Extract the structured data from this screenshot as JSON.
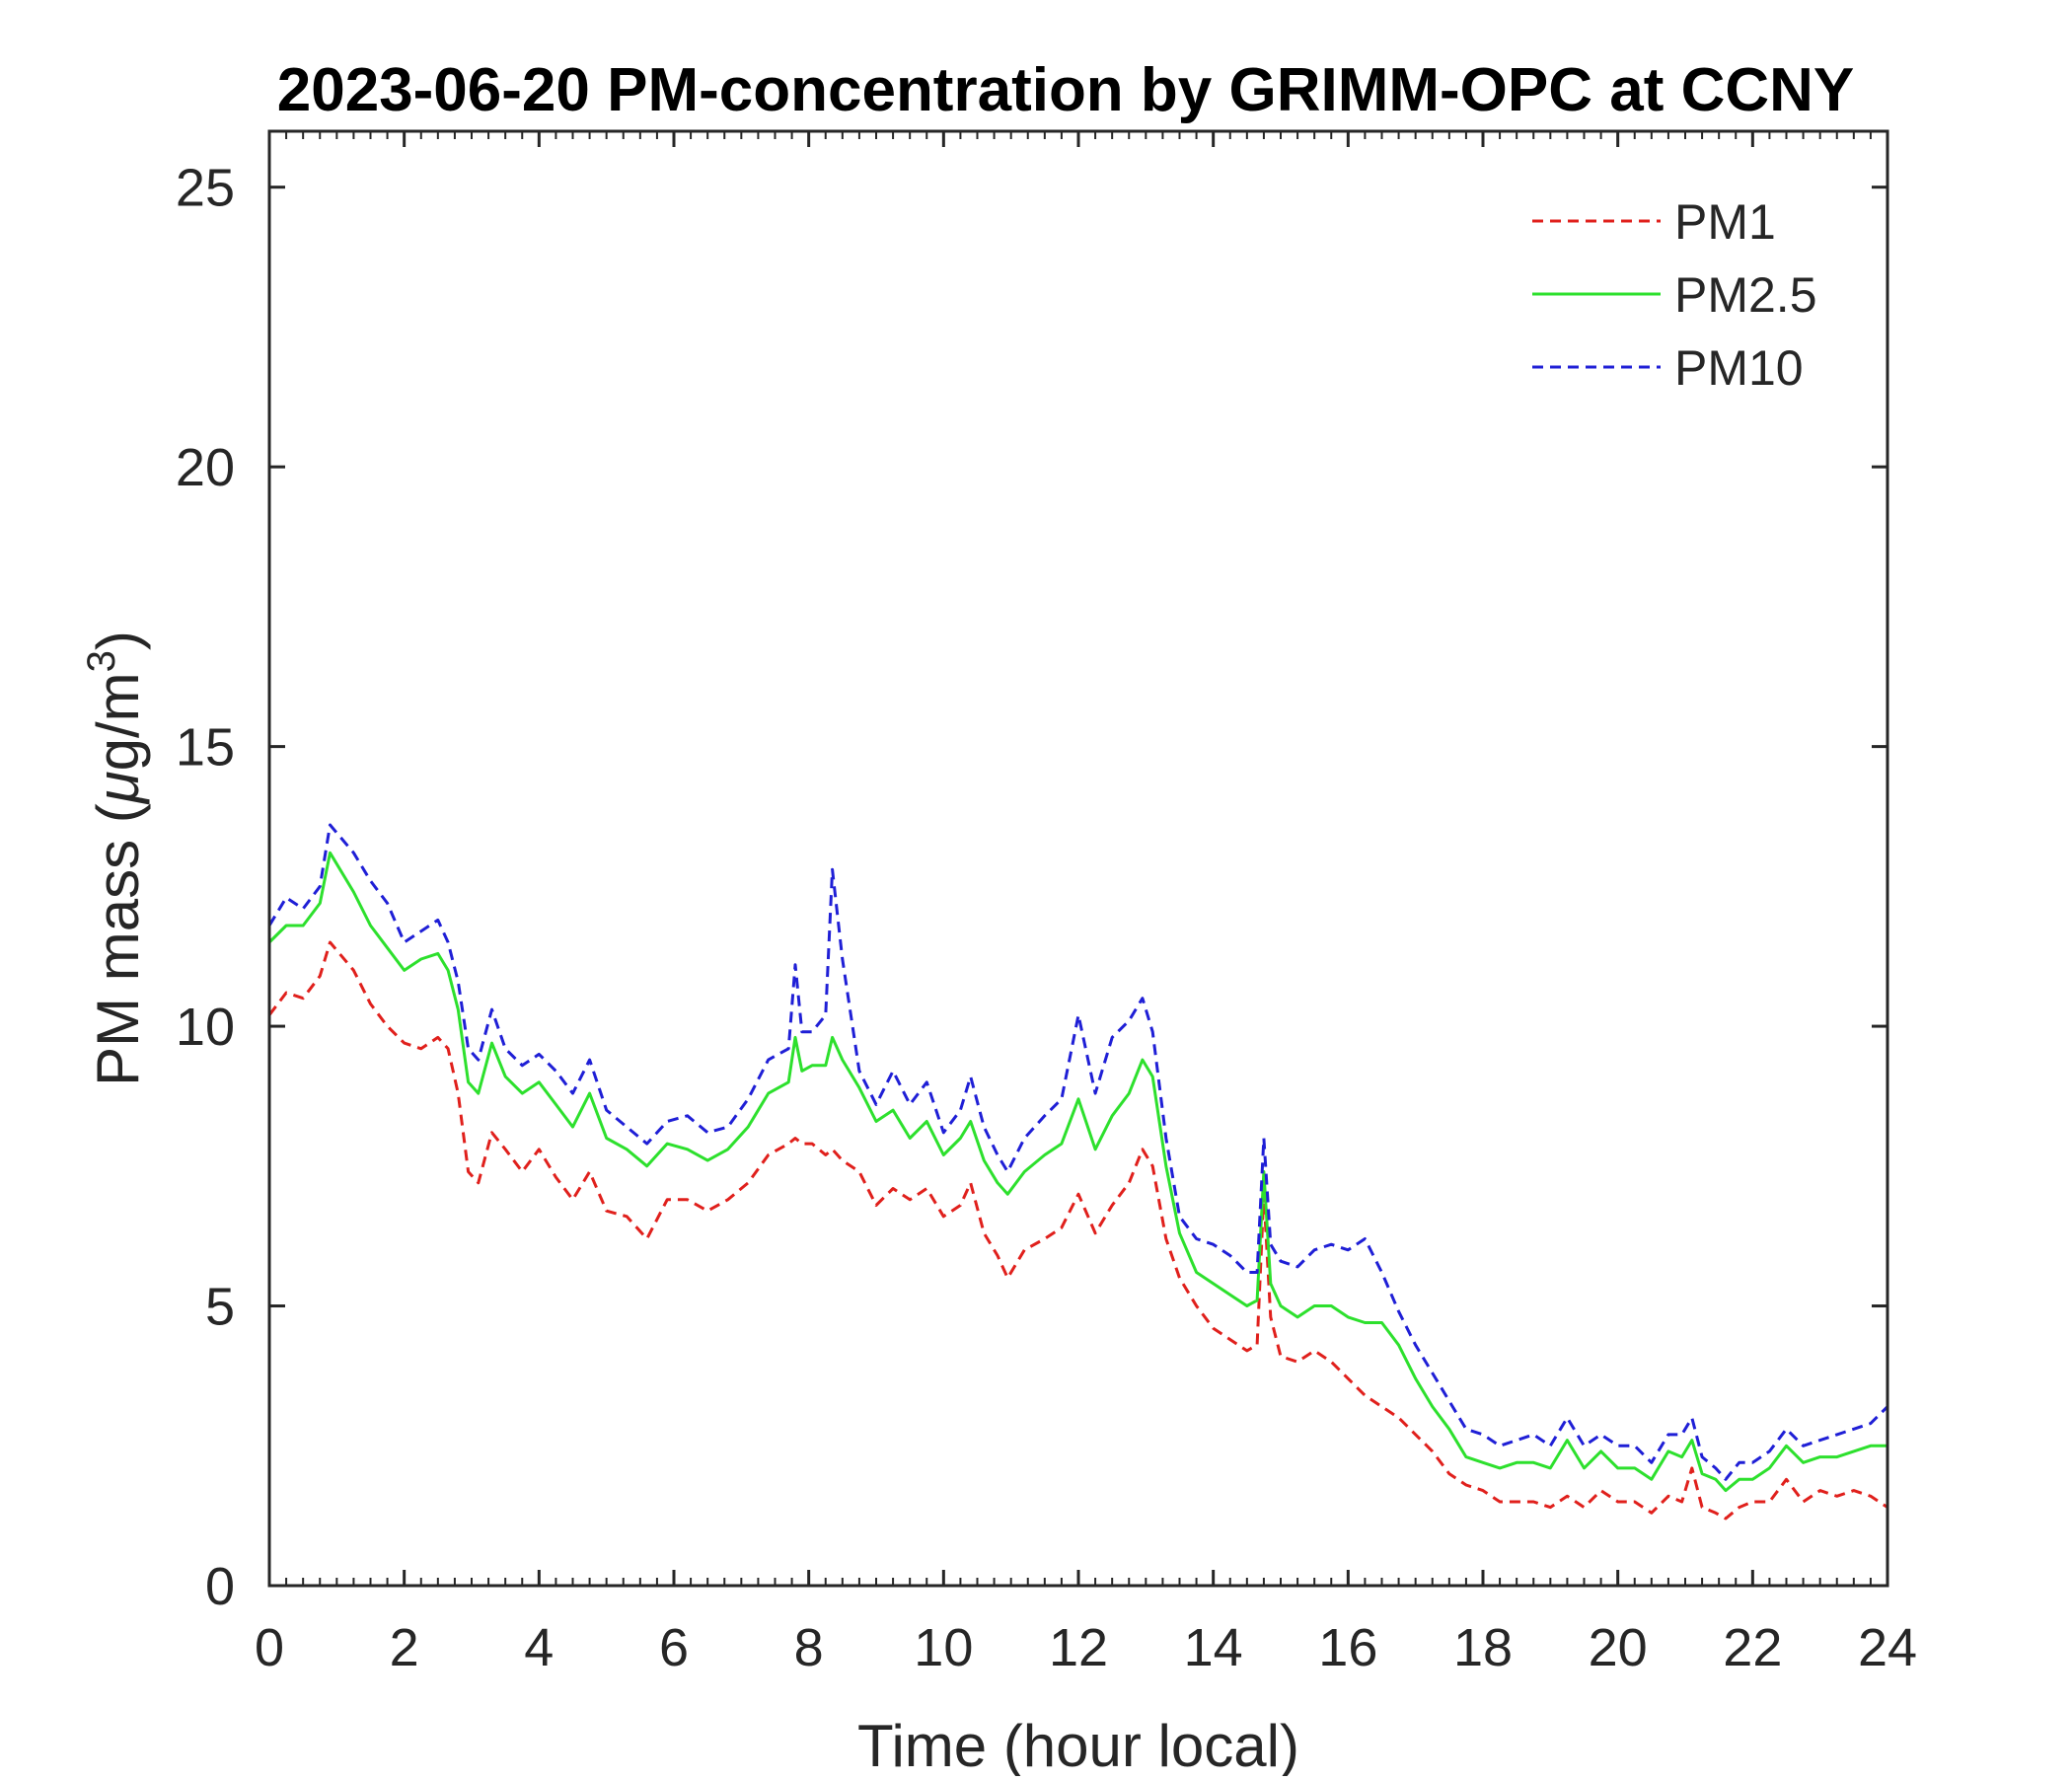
{
  "chart_data": {
    "type": "line",
    "title": "2023-06-20 PM-concentration by GRIMM-OPC at CCNY",
    "xlabel": "Time (hour local)",
    "ylabel_main": "PM mass (",
    "ylabel_mu": "μ",
    "ylabel_unit": "g/m",
    "ylabel_exp": "3",
    "ylabel_close": ")",
    "xlim": [
      0,
      24
    ],
    "ylim": [
      0,
      26
    ],
    "xticks": [
      "0",
      "2",
      "4",
      "6",
      "8",
      "10",
      "12",
      "14",
      "16",
      "18",
      "20",
      "22",
      "24"
    ],
    "yticks": [
      "0",
      "5",
      "10",
      "15",
      "20",
      "25"
    ],
    "legend_position": "top-right",
    "x": [
      0,
      0.25,
      0.5,
      0.75,
      0.9,
      1.25,
      1.5,
      1.75,
      2,
      2.25,
      2.5,
      2.65,
      2.8,
      2.95,
      3.1,
      3.3,
      3.5,
      3.75,
      4,
      4.25,
      4.5,
      4.75,
      5,
      5.3,
      5.6,
      5.9,
      6.2,
      6.5,
      6.8,
      7.1,
      7.4,
      7.7,
      7.8,
      7.9,
      8.05,
      8.25,
      8.35,
      8.5,
      8.75,
      9,
      9.25,
      9.5,
      9.75,
      10,
      10.25,
      10.4,
      10.6,
      10.8,
      10.95,
      11.2,
      11.5,
      11.75,
      12,
      12.25,
      12.5,
      12.75,
      12.95,
      13.1,
      13.3,
      13.5,
      13.75,
      14,
      14.25,
      14.5,
      14.65,
      14.75,
      14.85,
      15,
      15.25,
      15.5,
      15.75,
      16,
      16.25,
      16.5,
      16.75,
      17,
      17.25,
      17.5,
      17.75,
      18,
      18.25,
      18.5,
      18.75,
      19,
      19.25,
      19.5,
      19.75,
      20,
      20.25,
      20.5,
      20.75,
      20.95,
      21.1,
      21.25,
      21.45,
      21.6,
      21.8,
      22,
      22.25,
      22.5,
      22.75,
      23,
      23.25,
      23.5,
      23.75,
      24
    ],
    "series": [
      {
        "name": "PM1",
        "color": "#e0201c",
        "style": "dashed",
        "values": [
          10.2,
          10.6,
          10.5,
          10.9,
          11.5,
          11.0,
          10.4,
          10.0,
          9.7,
          9.6,
          9.8,
          9.6,
          8.8,
          7.4,
          7.2,
          8.1,
          7.8,
          7.4,
          7.8,
          7.3,
          6.9,
          7.4,
          6.7,
          6.6,
          6.2,
          6.9,
          6.9,
          6.7,
          6.9,
          7.2,
          7.7,
          7.9,
          8.0,
          7.9,
          7.9,
          7.7,
          7.8,
          7.6,
          7.4,
          6.8,
          7.1,
          6.9,
          7.1,
          6.6,
          6.8,
          7.2,
          6.3,
          5.9,
          5.5,
          6.0,
          6.2,
          6.4,
          7.0,
          6.3,
          6.8,
          7.2,
          7.8,
          7.5,
          6.2,
          5.5,
          5.0,
          4.6,
          4.4,
          4.2,
          4.3,
          7.0,
          4.8,
          4.1,
          4.0,
          4.2,
          4.0,
          3.7,
          3.4,
          3.2,
          3.0,
          2.7,
          2.4,
          2.0,
          1.8,
          1.7,
          1.5,
          1.5,
          1.5,
          1.4,
          1.6,
          1.4,
          1.7,
          1.5,
          1.5,
          1.3,
          1.6,
          1.5,
          2.1,
          1.4,
          1.3,
          1.2,
          1.4,
          1.5,
          1.5,
          1.9,
          1.5,
          1.7,
          1.6,
          1.7,
          1.6,
          1.4
        ]
      },
      {
        "name": "PM2.5",
        "color": "#2de02d",
        "style": "solid",
        "values": [
          11.5,
          11.8,
          11.8,
          12.2,
          13.1,
          12.4,
          11.8,
          11.4,
          11.0,
          11.2,
          11.3,
          11.0,
          10.3,
          9.0,
          8.8,
          9.7,
          9.1,
          8.8,
          9.0,
          8.6,
          8.2,
          8.8,
          8.0,
          7.8,
          7.5,
          7.9,
          7.8,
          7.6,
          7.8,
          8.2,
          8.8,
          9.0,
          9.8,
          9.2,
          9.3,
          9.3,
          9.8,
          9.4,
          8.9,
          8.3,
          8.5,
          8.0,
          8.3,
          7.7,
          8.0,
          8.3,
          7.6,
          7.2,
          7.0,
          7.4,
          7.7,
          7.9,
          8.7,
          7.8,
          8.4,
          8.8,
          9.4,
          9.1,
          7.5,
          6.3,
          5.6,
          5.4,
          5.2,
          5.0,
          5.1,
          7.4,
          5.4,
          5.0,
          4.8,
          5.0,
          5.0,
          4.8,
          4.7,
          4.7,
          4.3,
          3.7,
          3.2,
          2.8,
          2.3,
          2.2,
          2.1,
          2.2,
          2.2,
          2.1,
          2.6,
          2.1,
          2.4,
          2.1,
          2.1,
          1.9,
          2.4,
          2.3,
          2.6,
          2.0,
          1.9,
          1.7,
          1.9,
          1.9,
          2.1,
          2.5,
          2.2,
          2.3,
          2.3,
          2.4,
          2.5,
          2.5
        ]
      },
      {
        "name": "PM10",
        "color": "#1f1fd6",
        "style": "dashed",
        "values": [
          11.8,
          12.3,
          12.1,
          12.5,
          13.6,
          13.1,
          12.6,
          12.2,
          11.5,
          11.7,
          11.9,
          11.5,
          10.8,
          9.6,
          9.4,
          10.3,
          9.6,
          9.3,
          9.5,
          9.2,
          8.8,
          9.4,
          8.5,
          8.2,
          7.9,
          8.3,
          8.4,
          8.1,
          8.2,
          8.7,
          9.4,
          9.6,
          11.1,
          9.9,
          9.9,
          10.2,
          12.8,
          11.2,
          9.2,
          8.6,
          9.2,
          8.6,
          9.0,
          8.1,
          8.5,
          9.1,
          8.2,
          7.7,
          7.4,
          8.0,
          8.4,
          8.7,
          10.2,
          8.8,
          9.8,
          10.1,
          10.5,
          9.9,
          8.0,
          6.6,
          6.2,
          6.1,
          5.9,
          5.6,
          5.6,
          8.0,
          6.1,
          5.8,
          5.7,
          6.0,
          6.1,
          6.0,
          6.2,
          5.6,
          4.9,
          4.3,
          3.8,
          3.3,
          2.8,
          2.7,
          2.5,
          2.6,
          2.7,
          2.5,
          3.0,
          2.5,
          2.7,
          2.5,
          2.5,
          2.2,
          2.7,
          2.7,
          3.0,
          2.3,
          2.1,
          1.9,
          2.2,
          2.2,
          2.4,
          2.8,
          2.5,
          2.6,
          2.7,
          2.8,
          2.9,
          3.2
        ]
      }
    ]
  }
}
